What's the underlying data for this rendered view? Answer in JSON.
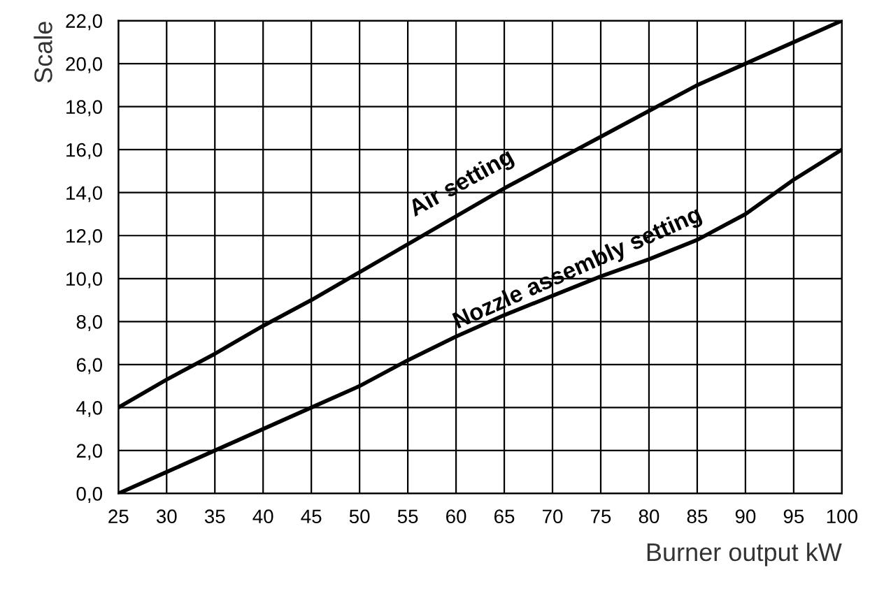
{
  "chart_data": {
    "type": "line",
    "xlabel": "Burner output kW",
    "ylabel": "Scale",
    "series": [
      {
        "color": "#000000",
        "x": [
          25,
          30,
          35,
          40,
          45,
          50,
          55,
          60,
          65,
          70,
          75,
          80,
          85,
          90,
          95,
          100
        ],
        "values": [
          4.0,
          5.3,
          6.5,
          7.8,
          9.0,
          10.3,
          11.6,
          12.9,
          14.2,
          15.4,
          16.6,
          17.8,
          19.0,
          20.0,
          21.0,
          22.0
        ]
      },
      {
        "color": "#000000",
        "x": [
          25,
          30,
          35,
          40,
          45,
          50,
          55,
          60,
          65,
          70,
          75,
          80,
          85,
          90,
          95,
          100
        ],
        "values": [
          0.0,
          1.0,
          2.0,
          3.0,
          4.0,
          5.0,
          6.2,
          7.3,
          8.3,
          9.2,
          10.1,
          10.9,
          11.8,
          13.0,
          14.6,
          16.0
        ]
      }
    ],
    "annotations": [
      "Air setting",
      "Nozzle assembly setting"
    ],
    "xlim": [
      25,
      100
    ],
    "xticks": [
      25,
      30,
      35,
      40,
      45,
      50,
      55,
      60,
      65,
      70,
      75,
      80,
      85,
      90,
      95,
      100
    ],
    "ylim": [
      0,
      22
    ],
    "yticks": [
      {
        "value": 0,
        "label": "0,0"
      },
      {
        "value": 2,
        "label": "2,0"
      },
      {
        "value": 4,
        "label": "4,0"
      },
      {
        "value": 6,
        "label": "6,0"
      },
      {
        "value": 8,
        "label": "8,0"
      },
      {
        "value": 10,
        "label": "10,0"
      },
      {
        "value": 12,
        "label": "12,0"
      },
      {
        "value": 14,
        "label": "14,0"
      },
      {
        "value": 16,
        "label": "16,0"
      },
      {
        "value": 18,
        "label": "18,0"
      },
      {
        "value": 20,
        "label": "20,0"
      },
      {
        "value": 22,
        "label": "22,0"
      }
    ],
    "grid": true,
    "marker": "none",
    "line_style": "solid"
  }
}
